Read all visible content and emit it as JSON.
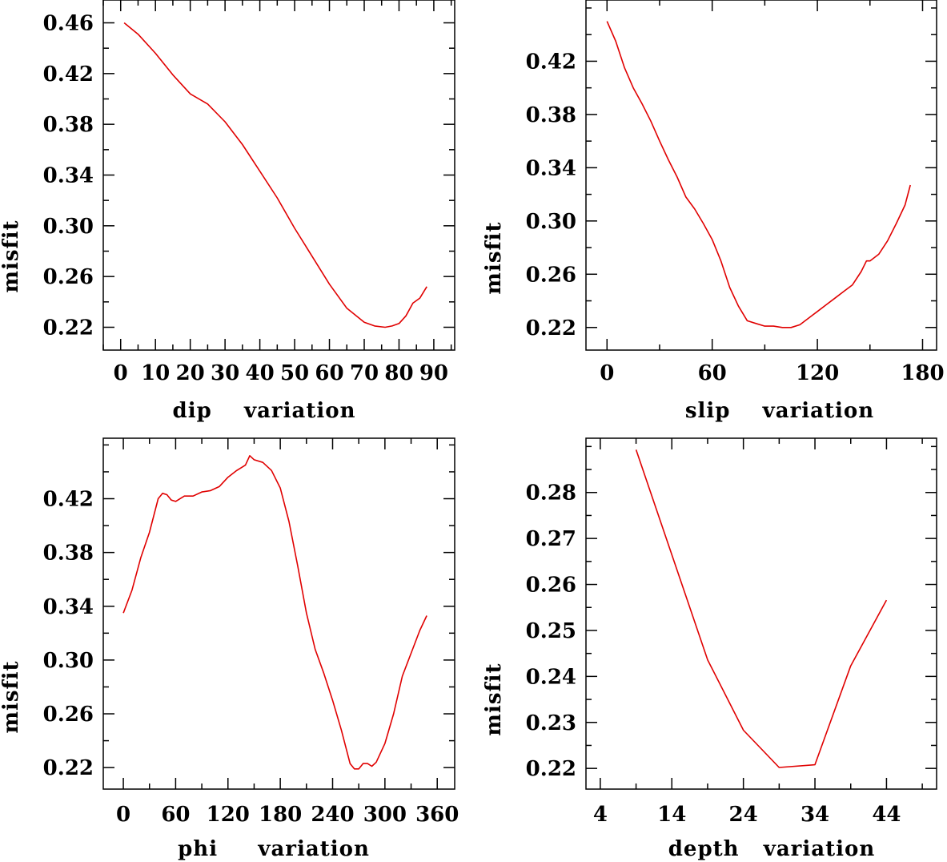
{
  "chart_data": [
    {
      "type": "line",
      "id": "dip",
      "title": "",
      "xlabel": "dip    variation",
      "ylabel": "misfit",
      "xlim": [
        -5,
        96
      ],
      "ylim": [
        0.202,
        0.478
      ],
      "xticks": [
        0,
        10,
        20,
        30,
        40,
        50,
        60,
        70,
        80,
        90
      ],
      "xtick_labels": [
        "0",
        "10",
        "20",
        "30",
        "40",
        "50",
        "60",
        "70",
        "80",
        "90"
      ],
      "yticks": [
        0.22,
        0.26,
        0.3,
        0.34,
        0.38,
        0.42,
        0.46
      ],
      "ytick_labels": [
        "0.22",
        "0.26",
        "0.30",
        "0.34",
        "0.38",
        "0.42",
        "0.46"
      ],
      "series": [
        {
          "name": "dip",
          "color": "#e00000",
          "x": [
            1,
            5,
            10,
            15,
            20,
            25,
            30,
            35,
            40,
            45,
            50,
            55,
            60,
            65,
            70,
            73,
            76,
            78,
            80,
            82,
            84,
            86,
            88
          ],
          "y": [
            0.46,
            0.451,
            0.436,
            0.419,
            0.404,
            0.396,
            0.382,
            0.364,
            0.343,
            0.322,
            0.298,
            0.276,
            0.254,
            0.235,
            0.224,
            0.221,
            0.22,
            0.221,
            0.223,
            0.229,
            0.239,
            0.243,
            0.252
          ]
        }
      ]
    },
    {
      "type": "line",
      "id": "slip",
      "title": "",
      "xlabel": "slip    variation",
      "ylabel": "misfit",
      "xlim": [
        -12,
        188
      ],
      "ylim": [
        0.203,
        0.466
      ],
      "xticks": [
        0,
        60,
        120,
        180
      ],
      "xtick_labels": [
        "0",
        "60",
        "120",
        "180"
      ],
      "yticks": [
        0.22,
        0.26,
        0.3,
        0.34,
        0.38,
        0.42
      ],
      "ytick_labels": [
        "0.22",
        "0.26",
        "0.30",
        "0.34",
        "0.38",
        "0.42"
      ],
      "series": [
        {
          "name": "slip",
          "color": "#e00000",
          "x": [
            0,
            5,
            10,
            15,
            20,
            25,
            30,
            35,
            40,
            45,
            50,
            55,
            60,
            65,
            70,
            75,
            80,
            85,
            90,
            95,
            100,
            105,
            110,
            115,
            120,
            125,
            130,
            135,
            140,
            145,
            148,
            150,
            155,
            160,
            165,
            170,
            173
          ],
          "y": [
            0.45,
            0.435,
            0.415,
            0.4,
            0.388,
            0.375,
            0.36,
            0.346,
            0.333,
            0.318,
            0.309,
            0.298,
            0.286,
            0.27,
            0.25,
            0.236,
            0.225,
            0.223,
            0.221,
            0.221,
            0.22,
            0.22,
            0.222,
            0.227,
            0.232,
            0.237,
            0.242,
            0.247,
            0.252,
            0.262,
            0.27,
            0.27,
            0.275,
            0.285,
            0.298,
            0.312,
            0.327
          ]
        }
      ]
    },
    {
      "type": "line",
      "id": "phi",
      "title": "",
      "xlabel": "phi     variation",
      "ylabel": "misfit",
      "xlim": [
        -23,
        380
      ],
      "ylim": [
        0.204,
        0.465
      ],
      "xticks": [
        0,
        60,
        120,
        180,
        240,
        300,
        360
      ],
      "xtick_labels": [
        "0",
        "60",
        "120",
        "180",
        "240",
        "300",
        "360"
      ],
      "yticks": [
        0.22,
        0.26,
        0.3,
        0.34,
        0.38,
        0.42
      ],
      "ytick_labels": [
        "0.22",
        "0.26",
        "0.30",
        "0.34",
        "0.38",
        "0.42"
      ],
      "series": [
        {
          "name": "phi",
          "color": "#e00000",
          "x": [
            0,
            10,
            20,
            30,
            40,
            45,
            50,
            55,
            60,
            70,
            80,
            90,
            100,
            110,
            120,
            130,
            140,
            145,
            150,
            160,
            170,
            180,
            190,
            200,
            210,
            220,
            230,
            240,
            250,
            260,
            265,
            270,
            275,
            280,
            285,
            290,
            300,
            310,
            320,
            330,
            340,
            348
          ],
          "y": [
            0.335,
            0.352,
            0.376,
            0.395,
            0.42,
            0.424,
            0.423,
            0.419,
            0.418,
            0.422,
            0.422,
            0.425,
            0.426,
            0.429,
            0.436,
            0.441,
            0.445,
            0.452,
            0.449,
            0.447,
            0.441,
            0.428,
            0.403,
            0.37,
            0.335,
            0.308,
            0.29,
            0.27,
            0.248,
            0.223,
            0.219,
            0.219,
            0.223,
            0.223,
            0.221,
            0.224,
            0.238,
            0.26,
            0.288,
            0.305,
            0.322,
            0.333
          ]
        }
      ]
    },
    {
      "type": "line",
      "id": "depth",
      "title": "",
      "xlabel": "depth   variation",
      "ylabel": "misfit",
      "xlim": [
        2,
        51
      ],
      "ylim": [
        0.2155,
        0.2918
      ],
      "xticks": [
        4,
        14,
        24,
        34,
        44
      ],
      "xtick_labels": [
        "4",
        "14",
        "24",
        "34",
        "44"
      ],
      "yticks": [
        0.22,
        0.23,
        0.24,
        0.25,
        0.26,
        0.27,
        0.28
      ],
      "ytick_labels": [
        "0.22",
        "0.23",
        "0.24",
        "0.25",
        "0.26",
        "0.27",
        "0.28"
      ],
      "series": [
        {
          "name": "depth",
          "color": "#e00000",
          "x": [
            9,
            19,
            24,
            29,
            34,
            39,
            44
          ],
          "y": [
            0.2893,
            0.2436,
            0.2283,
            0.2202,
            0.2208,
            0.2423,
            0.2566
          ]
        }
      ]
    }
  ]
}
